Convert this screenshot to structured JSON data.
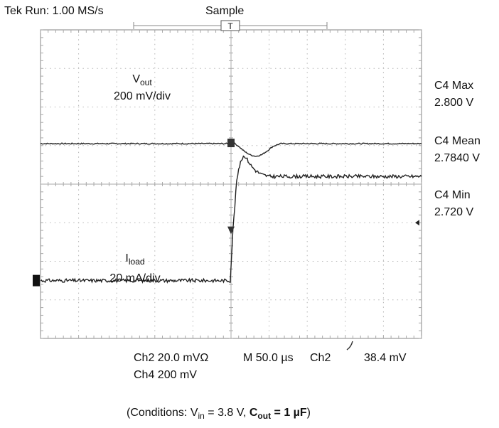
{
  "header": {
    "status": "Tek Run: 1.00 MS/s",
    "mode": "Sample",
    "trigger_marker": "T"
  },
  "traces": {
    "vout": {
      "label": "V",
      "label_sub": "out",
      "scale": "200 mV/div",
      "color": "#222222"
    },
    "iload": {
      "label": "I",
      "label_sub": "load",
      "scale": "20 mA/div",
      "color": "#222222"
    }
  },
  "measurements": [
    {
      "name": "C4 Max",
      "value": "2.800 V"
    },
    {
      "name": "C4 Mean",
      "value": "2.7840 V"
    },
    {
      "name": "C4 Min",
      "value": "2.720 V"
    }
  ],
  "footer": {
    "ch2": "Ch2 20.0 mVΩ",
    "ch4": "Ch4 200 mV",
    "timebase": "M 50.0 µs",
    "trig_channel": "Ch2",
    "trig_level": "38.4 mV"
  },
  "caption": {
    "prefix": "(Conditions: V",
    "vin_sub": "in",
    "vin_value": " = 3.8 V, ",
    "cout_label": "C",
    "cout_sub": "out",
    "cout_value": " = 1 µF",
    "suffix": ")"
  },
  "chart_data": {
    "type": "line",
    "grid": true,
    "divisions": {
      "x": 10,
      "y": 8
    },
    "time_per_div": "50.0 µs",
    "series": [
      {
        "name": "V",
        "scale": "200 mV/div",
        "x_div": [
          0,
          5.0,
          5.1,
          5.2,
          5.35,
          5.5,
          5.65,
          5.8,
          5.95,
          6.1,
          6.3,
          10
        ],
        "y_div": [
          1.05,
          1.05,
          1.05,
          0.98,
          0.85,
          0.76,
          0.72,
          0.76,
          0.86,
          0.98,
          1.05,
          1.05
        ]
      },
      {
        "name": "I",
        "scale": "20 mA/div",
        "x_div": [
          0,
          4.98,
          5.05,
          5.15,
          5.25,
          5.35,
          5.45,
          5.55,
          5.65,
          5.8,
          6.0,
          10
        ],
        "y_div": [
          -2.5,
          -2.5,
          -1.2,
          0.1,
          0.6,
          0.75,
          0.6,
          0.45,
          0.35,
          0.25,
          0.2,
          0.2
        ]
      }
    ]
  }
}
